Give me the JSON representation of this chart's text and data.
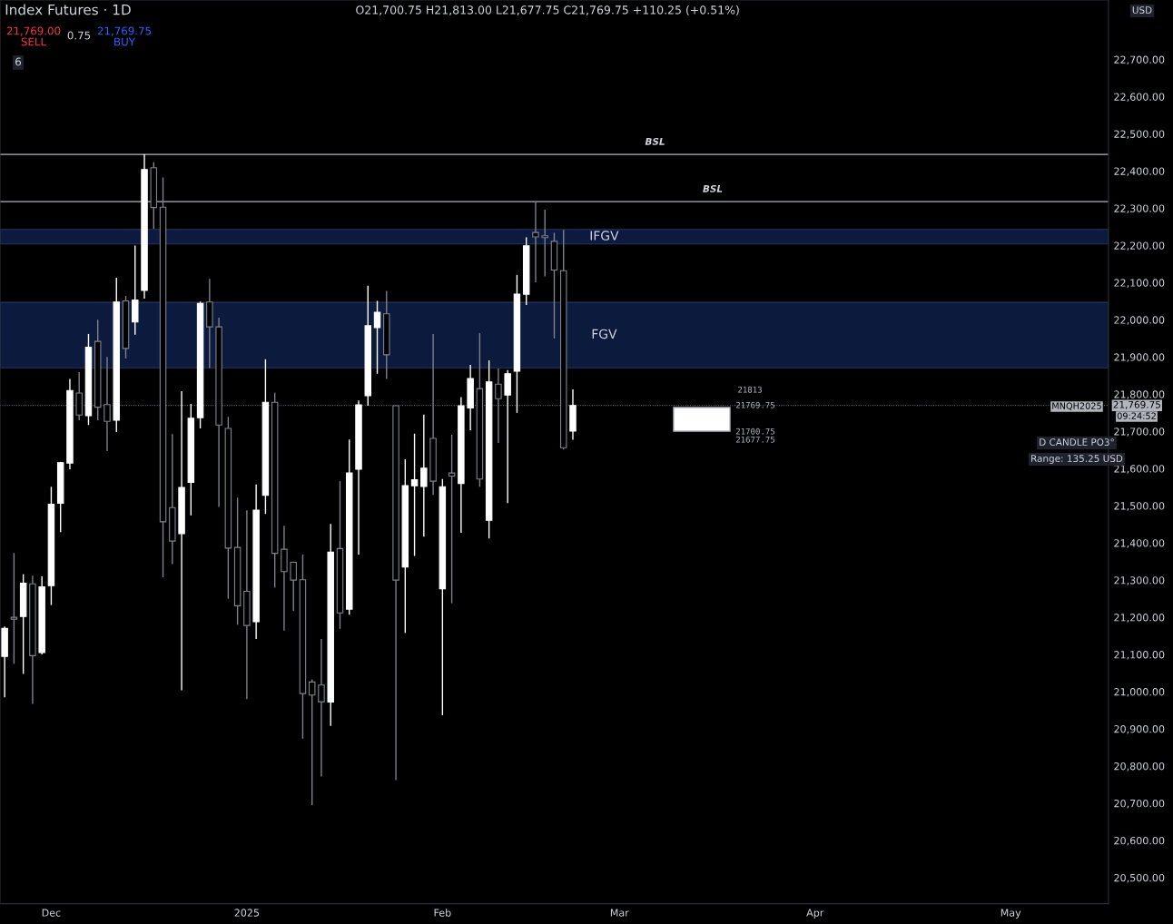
{
  "chart_data": {
    "type": "candlestick",
    "title": "Index Futures · 1D",
    "subtitle": "O21,700.75 H21,813.00 L21,677.75 C21,769.75 +110.25 (+0.51%)",
    "categories": [
      null,
      null,
      null,
      null,
      null,
      "Dec",
      null,
      null,
      null,
      null,
      null,
      null,
      null,
      null,
      null,
      null,
      null,
      null,
      null,
      null,
      null,
      null,
      null,
      null,
      null,
      null,
      "2025",
      null,
      null,
      null,
      null,
      null,
      null,
      null,
      null,
      null,
      null,
      null,
      null,
      null,
      null,
      null,
      null,
      null,
      null,
      null,
      null,
      "Feb",
      null,
      null,
      null,
      null,
      null,
      null,
      null,
      null,
      null,
      null,
      null,
      null,
      null,
      null,
      null,
      null,
      null,
      null,
      "Mar",
      null,
      null,
      null,
      null,
      null,
      null,
      null,
      null,
      null,
      null,
      null,
      null,
      null,
      null,
      null,
      null,
      null,
      null,
      null,
      null,
      "Apr",
      null,
      null,
      null,
      null,
      null,
      null,
      null,
      null,
      null,
      null,
      null,
      null,
      null,
      null,
      null,
      null,
      null,
      null,
      null,
      null,
      "May",
      null,
      null,
      null,
      null,
      null,
      null,
      null,
      null,
      null,
      null
    ],
    "ohlc": [
      [
        21095,
        21175,
        20985,
        21170
      ],
      [
        21200,
        21373,
        21075,
        21195
      ],
      [
        21202,
        21316,
        21048,
        21292
      ],
      [
        21290,
        21312,
        20967,
        21097
      ],
      [
        21105,
        21310,
        21100,
        21282
      ],
      [
        21285,
        21551,
        21233,
        21504
      ],
      [
        21507,
        21618,
        21429,
        21616
      ],
      [
        21615,
        21841,
        21598,
        21810
      ],
      [
        21803,
        21859,
        21730,
        21744
      ],
      [
        21742,
        21962,
        21717,
        21926
      ],
      [
        21942,
        22000,
        21730,
        21765
      ],
      [
        21772,
        21900,
        21647,
        21727
      ],
      [
        21730,
        22113,
        21698,
        22048
      ],
      [
        22051,
        22064,
        21896,
        21923
      ],
      [
        21994,
        22200,
        21960,
        22053
      ],
      [
        22079,
        22445,
        22057,
        22404
      ],
      [
        22409,
        22424,
        22245,
        22302
      ],
      [
        22303,
        22383,
        21308,
        21457
      ],
      [
        21495,
        21693,
        21343,
        21405
      ],
      [
        21425,
        21808,
        21004,
        21549
      ],
      [
        21563,
        21774,
        21474,
        21735
      ],
      [
        21737,
        22049,
        21708,
        22044
      ],
      [
        22048,
        22110,
        21870,
        21981
      ],
      [
        21981,
        22006,
        21497,
        21717
      ],
      [
        21708,
        21739,
        21250,
        21386
      ],
      [
        21388,
        21522,
        21180,
        21231
      ],
      [
        21270,
        21488,
        20980,
        21178
      ],
      [
        21188,
        21557,
        21142,
        21488
      ],
      [
        21528,
        21894,
        21478,
        21778
      ],
      [
        21778,
        21804,
        21280,
        21372
      ],
      [
        21383,
        21446,
        21164,
        21323
      ],
      [
        21348,
        21350,
        21217,
        21300
      ],
      [
        21301,
        21369,
        20874,
        20995
      ],
      [
        21026,
        21033,
        20695,
        20991
      ],
      [
        21018,
        21142,
        20772,
        20973
      ],
      [
        20972,
        21451,
        20908,
        21375
      ],
      [
        21385,
        21566,
        21169,
        21212
      ],
      [
        21222,
        21678,
        21207,
        21588
      ],
      [
        21598,
        21783,
        21369,
        21771
      ],
      [
        21796,
        22092,
        21769,
        21984
      ],
      [
        21979,
        22051,
        21855,
        22020
      ],
      [
        22016,
        22078,
        21841,
        21906
      ],
      [
        21769,
        21769,
        20762,
        21300
      ],
      [
        21335,
        21625,
        21158,
        21554
      ],
      [
        21554,
        21694,
        21365,
        21570
      ],
      [
        21552,
        21745,
        21417,
        21601
      ],
      [
        21681,
        21962,
        21529,
        21566
      ],
      [
        21277,
        21572,
        20937,
        21551
      ],
      [
        21588,
        21691,
        21238,
        21580
      ],
      [
        21560,
        21792,
        21427,
        21769
      ],
      [
        21763,
        21879,
        21703,
        21842
      ],
      [
        21815,
        21964,
        21551,
        21572
      ],
      [
        21461,
        21891,
        21412,
        21833
      ],
      [
        21827,
        21869,
        21669,
        21788
      ],
      [
        21798,
        21865,
        21507,
        21855
      ],
      [
        21862,
        22121,
        21750,
        22069
      ],
      [
        22069,
        22222,
        22040,
        22199
      ],
      [
        22235,
        22318,
        22101,
        22223
      ],
      [
        22226,
        22296,
        22117,
        22221
      ],
      [
        22211,
        22234,
        21950,
        22134
      ],
      [
        22132,
        22242,
        21651,
        21656
      ],
      [
        21700.75,
        21813,
        21677.75,
        21769.75
      ],
      null,
      null,
      null,
      null,
      null,
      null,
      null,
      null,
      null,
      null,
      null,
      null,
      null,
      null,
      null,
      null,
      null,
      null,
      null,
      null,
      null,
      null,
      null,
      null,
      null,
      null,
      null,
      null,
      null,
      null,
      null,
      null,
      null,
      null,
      null,
      null,
      null,
      null,
      null,
      null,
      null,
      null,
      null,
      null,
      null,
      null,
      null,
      null,
      null,
      null,
      null,
      null,
      null,
      null,
      null,
      null,
      null
    ],
    "ylim": [
      20430,
      22860
    ],
    "yticks": [
      {
        "value": 20500,
        "label": "20,500.00"
      },
      {
        "value": 20600,
        "label": "20,600.00"
      },
      {
        "value": 20700,
        "label": "20,700.00"
      },
      {
        "value": 20800,
        "label": "20,800.00"
      },
      {
        "value": 20900,
        "label": "20,900.00"
      },
      {
        "value": 21000,
        "label": "21,000.00"
      },
      {
        "value": 21100,
        "label": "21,100.00"
      },
      {
        "value": 21200,
        "label": "21,200.00"
      },
      {
        "value": 21300,
        "label": "21,300.00"
      },
      {
        "value": 21400,
        "label": "21,400.00"
      },
      {
        "value": 21500,
        "label": "21,500.00"
      },
      {
        "value": 21600,
        "label": "21,600.00"
      },
      {
        "value": 21700,
        "label": "21,700.00"
      },
      {
        "value": 21800,
        "label": "21,800.00"
      },
      {
        "value": 21900,
        "label": "21,900.00"
      },
      {
        "value": 22000,
        "label": "22,000.00"
      },
      {
        "value": 22100,
        "label": "22,100.00"
      },
      {
        "value": 22200,
        "label": "22,200.00"
      },
      {
        "value": 22300,
        "label": "22,300.00"
      },
      {
        "value": 22400,
        "label": "22,400.00"
      },
      {
        "value": 22500,
        "label": "22,500.00"
      },
      {
        "value": 22600,
        "label": "22,600.00"
      },
      {
        "value": 22700,
        "label": "22,700.00"
      }
    ],
    "ref_lines": [
      {
        "axis": "y",
        "value": 22445,
        "label": "BSL",
        "line_style": "solid"
      },
      {
        "axis": "y",
        "value": 22318,
        "label": "BSL",
        "line_style": "solid"
      },
      {
        "axis": "y",
        "value": 21769.75,
        "label": "21,769.75",
        "line_style": "dotted"
      }
    ],
    "bands": [
      {
        "axis": "y",
        "from": 22204,
        "to": 22243,
        "label": "IFGV",
        "color": "#0c1a40"
      },
      {
        "axis": "y",
        "from": 21871,
        "to": 22047,
        "label": "FGV",
        "color": "#0c1a3d"
      }
    ],
    "annotations": [
      "21,769.00",
      "SELL",
      "0.75",
      "21,769.75",
      "BUY",
      "6",
      "USD",
      "MNQH2025",
      "09:24:52",
      "D CANDLE PO3°",
      "Range: 135.25 USD",
      "21813",
      "21769.75",
      "21700.75",
      "21677.75"
    ],
    "grid": false,
    "legend": false
  }
}
